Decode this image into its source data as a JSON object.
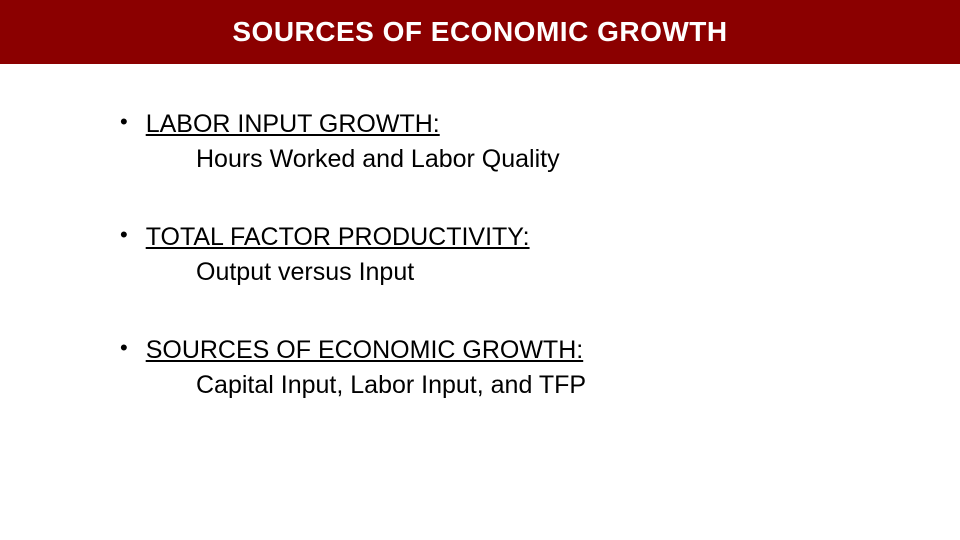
{
  "header": {
    "title": "SOURCES OF ECONOMIC GROWTH",
    "background_color": "#8b0000",
    "text_color": "#ffffff",
    "title_fontsize": 28
  },
  "bullets": [
    {
      "heading": "LABOR INPUT GROWTH:",
      "sub": "Hours Worked and Labor Quality"
    },
    {
      "heading": "TOTAL FACTOR PRODUCTIVITY:",
      "sub": "Output  versus Input"
    },
    {
      "heading": "SOURCES OF ECONOMIC GROWTH:",
      "sub": "Capital Input, Labor Input, and TFP"
    }
  ],
  "style": {
    "body_fontsize": 25,
    "text_color": "#000000",
    "background_color": "#ffffff",
    "bullet_char": "•"
  }
}
